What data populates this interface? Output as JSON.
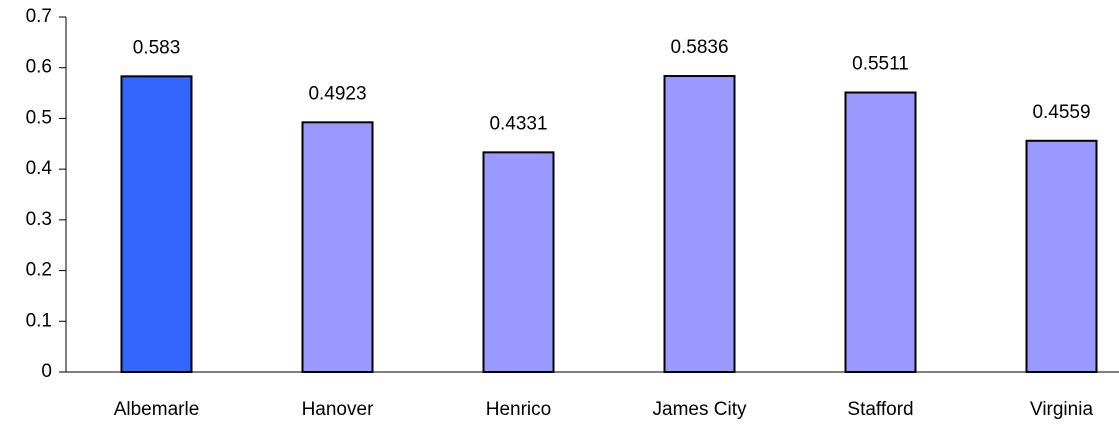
{
  "chart_data": {
    "type": "bar",
    "categories": [
      "Albemarle",
      "Hanover",
      "Henrico",
      "James City",
      "Stafford",
      "Virginia"
    ],
    "values": [
      0.583,
      0.4923,
      0.4331,
      0.5836,
      0.5511,
      0.4559
    ],
    "colors": [
      "#3366ff",
      "#9999ff",
      "#9999ff",
      "#9999ff",
      "#9999ff",
      "#9999ff"
    ],
    "ylim": [
      0,
      0.7
    ],
    "yticks": [
      0,
      0.1,
      0.2,
      0.3,
      0.4,
      0.5,
      0.6,
      0.7
    ],
    "grid": false
  }
}
